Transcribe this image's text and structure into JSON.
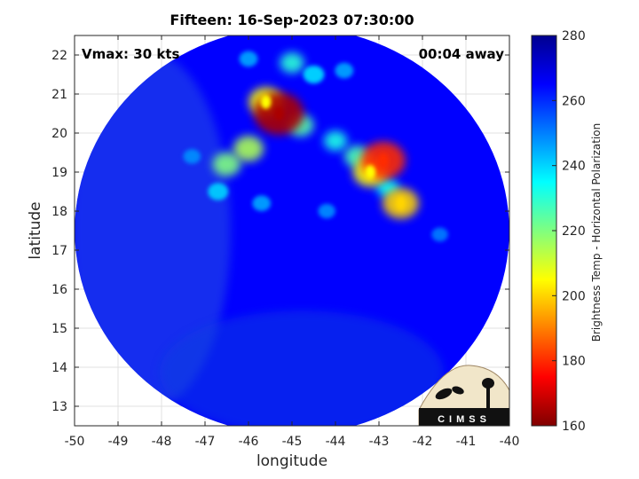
{
  "chart_data": {
    "type": "heatmap",
    "title": "Fifteen: 16-Sep-2023 07:30:00",
    "annotation_left": "Vmax: 30 kts",
    "annotation_right": "00:04 away",
    "xlabel": "longitude",
    "ylabel": "latitude",
    "xlim": [
      -50,
      -40
    ],
    "ylim": [
      12.5,
      22.5
    ],
    "xticks": [
      -50,
      -49,
      -48,
      -47,
      -46,
      -45,
      -44,
      -43,
      -42,
      -41,
      -40
    ],
    "yticks": [
      13,
      14,
      15,
      16,
      17,
      18,
      19,
      20,
      21,
      22
    ],
    "grid": true,
    "colorbar": {
      "label": "Brightness Temp - Horizontal Polarization",
      "range": [
        160,
        280
      ],
      "ticks": [
        160,
        180,
        200,
        220,
        240,
        260,
        280
      ],
      "colormap": "jet"
    },
    "swath": {
      "center": [
        -45,
        17.5
      ],
      "radius_deg": 5.2,
      "background_value": 265
    },
    "features": [
      {
        "lon": -45.3,
        "lat": 20.5,
        "value": 165
      },
      {
        "lon": -45.6,
        "lat": 20.8,
        "value": 205
      },
      {
        "lon": -44.8,
        "lat": 20.2,
        "value": 225
      },
      {
        "lon": -45.0,
        "lat": 21.8,
        "value": 230
      },
      {
        "lon": -44.5,
        "lat": 21.5,
        "value": 238
      },
      {
        "lon": -46.0,
        "lat": 19.6,
        "value": 215
      },
      {
        "lon": -46.5,
        "lat": 19.2,
        "value": 220
      },
      {
        "lon": -46.7,
        "lat": 18.5,
        "value": 240
      },
      {
        "lon": -44.0,
        "lat": 19.8,
        "value": 232
      },
      {
        "lon": -43.5,
        "lat": 19.4,
        "value": 226
      },
      {
        "lon": -42.9,
        "lat": 19.3,
        "value": 180
      },
      {
        "lon": -43.2,
        "lat": 19.0,
        "value": 205
      },
      {
        "lon": -42.5,
        "lat": 18.2,
        "value": 200
      },
      {
        "lon": -42.8,
        "lat": 18.6,
        "value": 235
      },
      {
        "lon": -45.7,
        "lat": 18.2,
        "value": 245
      },
      {
        "lon": -44.2,
        "lat": 18.0,
        "value": 248
      },
      {
        "lon": -47.3,
        "lat": 19.4,
        "value": 248
      },
      {
        "lon": -46.0,
        "lat": 21.9,
        "value": 245
      },
      {
        "lon": -43.8,
        "lat": 21.6,
        "value": 245
      },
      {
        "lon": -41.6,
        "lat": 17.4,
        "value": 250
      }
    ]
  },
  "logo": {
    "text": "CIMSS"
  }
}
